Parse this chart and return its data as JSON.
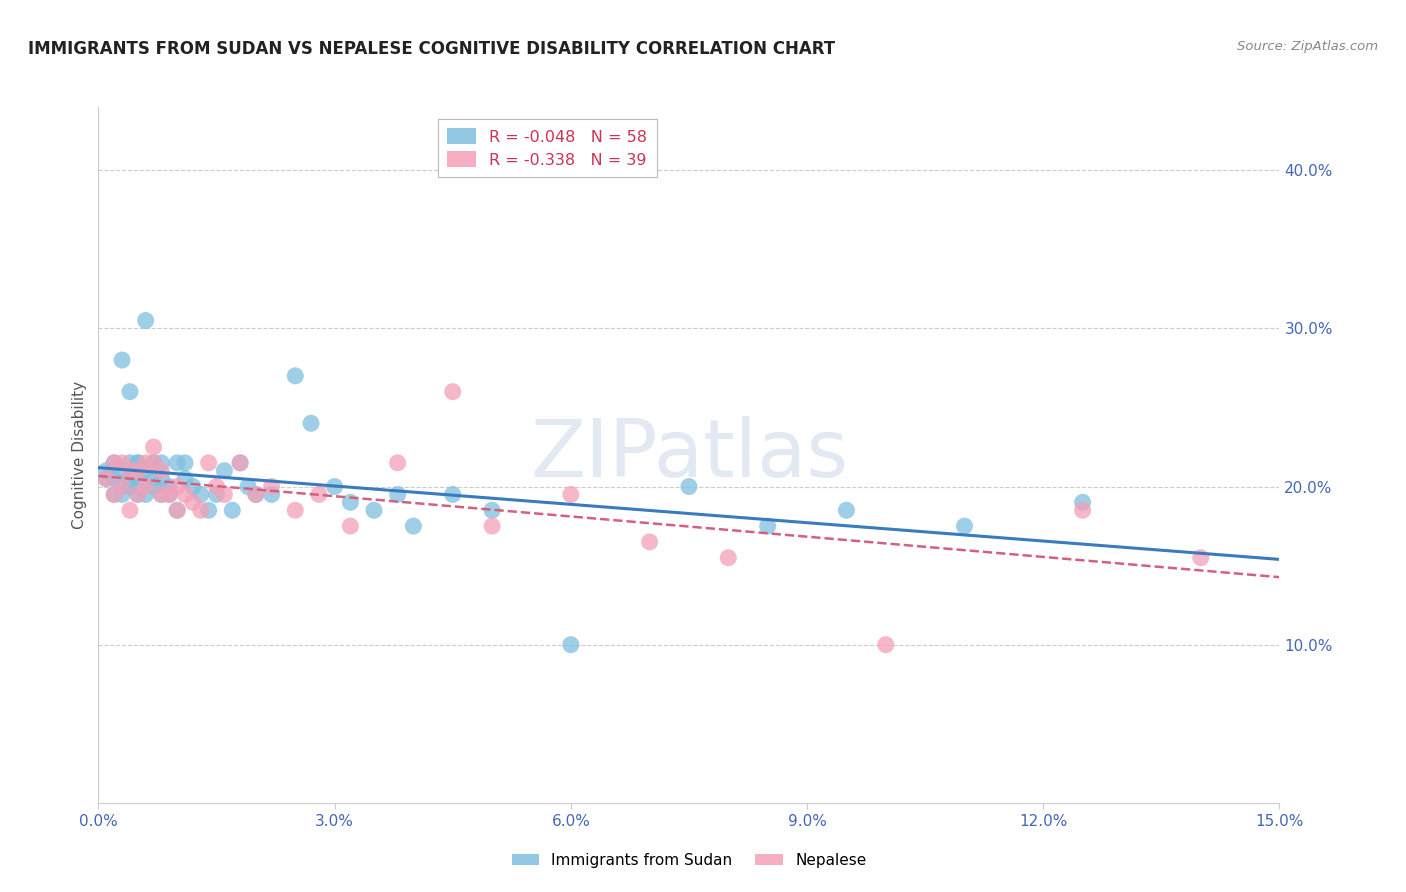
{
  "title": "IMMIGRANTS FROM SUDAN VS NEPALESE COGNITIVE DISABILITY CORRELATION CHART",
  "source": "Source: ZipAtlas.com",
  "ylabel": "Cognitive Disability",
  "watermark": "ZIPatlas",
  "xlim": [
    0.0,
    0.15
  ],
  "ylim": [
    0.0,
    0.44
  ],
  "xticks": [
    0.0,
    0.03,
    0.06,
    0.09,
    0.12,
    0.15
  ],
  "xtick_labels": [
    "0.0%",
    "3.0%",
    "6.0%",
    "9.0%",
    "12.0%",
    "15.0%"
  ],
  "yticks_right": [
    0.1,
    0.2,
    0.3,
    0.4
  ],
  "ytick_labels_right": [
    "10.0%",
    "20.0%",
    "30.0%",
    "40.0%"
  ],
  "grid_color": "#cccccc",
  "blue_color": "#7fbfdf",
  "pink_color": "#f4a0b8",
  "trend_blue": "#3a7abf",
  "trend_pink": "#d46080",
  "legend_r1": "R = -0.048",
  "legend_n1": "N = 58",
  "legend_r2": "R = -0.338",
  "legend_n2": "N = 39",
  "sudan_x": [
    0.001,
    0.001,
    0.002,
    0.002,
    0.002,
    0.003,
    0.003,
    0.003,
    0.003,
    0.004,
    0.004,
    0.004,
    0.004,
    0.005,
    0.005,
    0.005,
    0.005,
    0.005,
    0.006,
    0.006,
    0.006,
    0.007,
    0.007,
    0.007,
    0.008,
    0.008,
    0.008,
    0.009,
    0.009,
    0.01,
    0.01,
    0.011,
    0.011,
    0.012,
    0.013,
    0.014,
    0.015,
    0.016,
    0.017,
    0.018,
    0.019,
    0.02,
    0.022,
    0.025,
    0.027,
    0.03,
    0.032,
    0.035,
    0.038,
    0.04,
    0.045,
    0.05,
    0.06,
    0.075,
    0.085,
    0.095,
    0.11,
    0.125
  ],
  "sudan_y": [
    0.205,
    0.21,
    0.195,
    0.205,
    0.215,
    0.2,
    0.195,
    0.28,
    0.21,
    0.205,
    0.215,
    0.2,
    0.26,
    0.205,
    0.215,
    0.2,
    0.195,
    0.215,
    0.305,
    0.21,
    0.195,
    0.2,
    0.205,
    0.215,
    0.195,
    0.215,
    0.205,
    0.195,
    0.2,
    0.185,
    0.215,
    0.205,
    0.215,
    0.2,
    0.195,
    0.185,
    0.195,
    0.21,
    0.185,
    0.215,
    0.2,
    0.195,
    0.195,
    0.27,
    0.24,
    0.2,
    0.19,
    0.185,
    0.195,
    0.175,
    0.195,
    0.185,
    0.1,
    0.2,
    0.175,
    0.185,
    0.175,
    0.19
  ],
  "nepal_x": [
    0.001,
    0.002,
    0.002,
    0.003,
    0.003,
    0.004,
    0.004,
    0.005,
    0.005,
    0.006,
    0.006,
    0.007,
    0.007,
    0.008,
    0.008,
    0.009,
    0.01,
    0.01,
    0.011,
    0.012,
    0.013,
    0.014,
    0.015,
    0.016,
    0.018,
    0.02,
    0.022,
    0.025,
    0.028,
    0.032,
    0.038,
    0.045,
    0.06,
    0.08,
    0.1,
    0.125,
    0.14,
    0.05,
    0.07
  ],
  "nepal_y": [
    0.205,
    0.215,
    0.195,
    0.215,
    0.2,
    0.21,
    0.185,
    0.21,
    0.195,
    0.215,
    0.2,
    0.225,
    0.215,
    0.195,
    0.21,
    0.195,
    0.2,
    0.185,
    0.195,
    0.19,
    0.185,
    0.215,
    0.2,
    0.195,
    0.215,
    0.195,
    0.2,
    0.185,
    0.195,
    0.175,
    0.215,
    0.26,
    0.195,
    0.155,
    0.1,
    0.185,
    0.155,
    0.175,
    0.165
  ]
}
